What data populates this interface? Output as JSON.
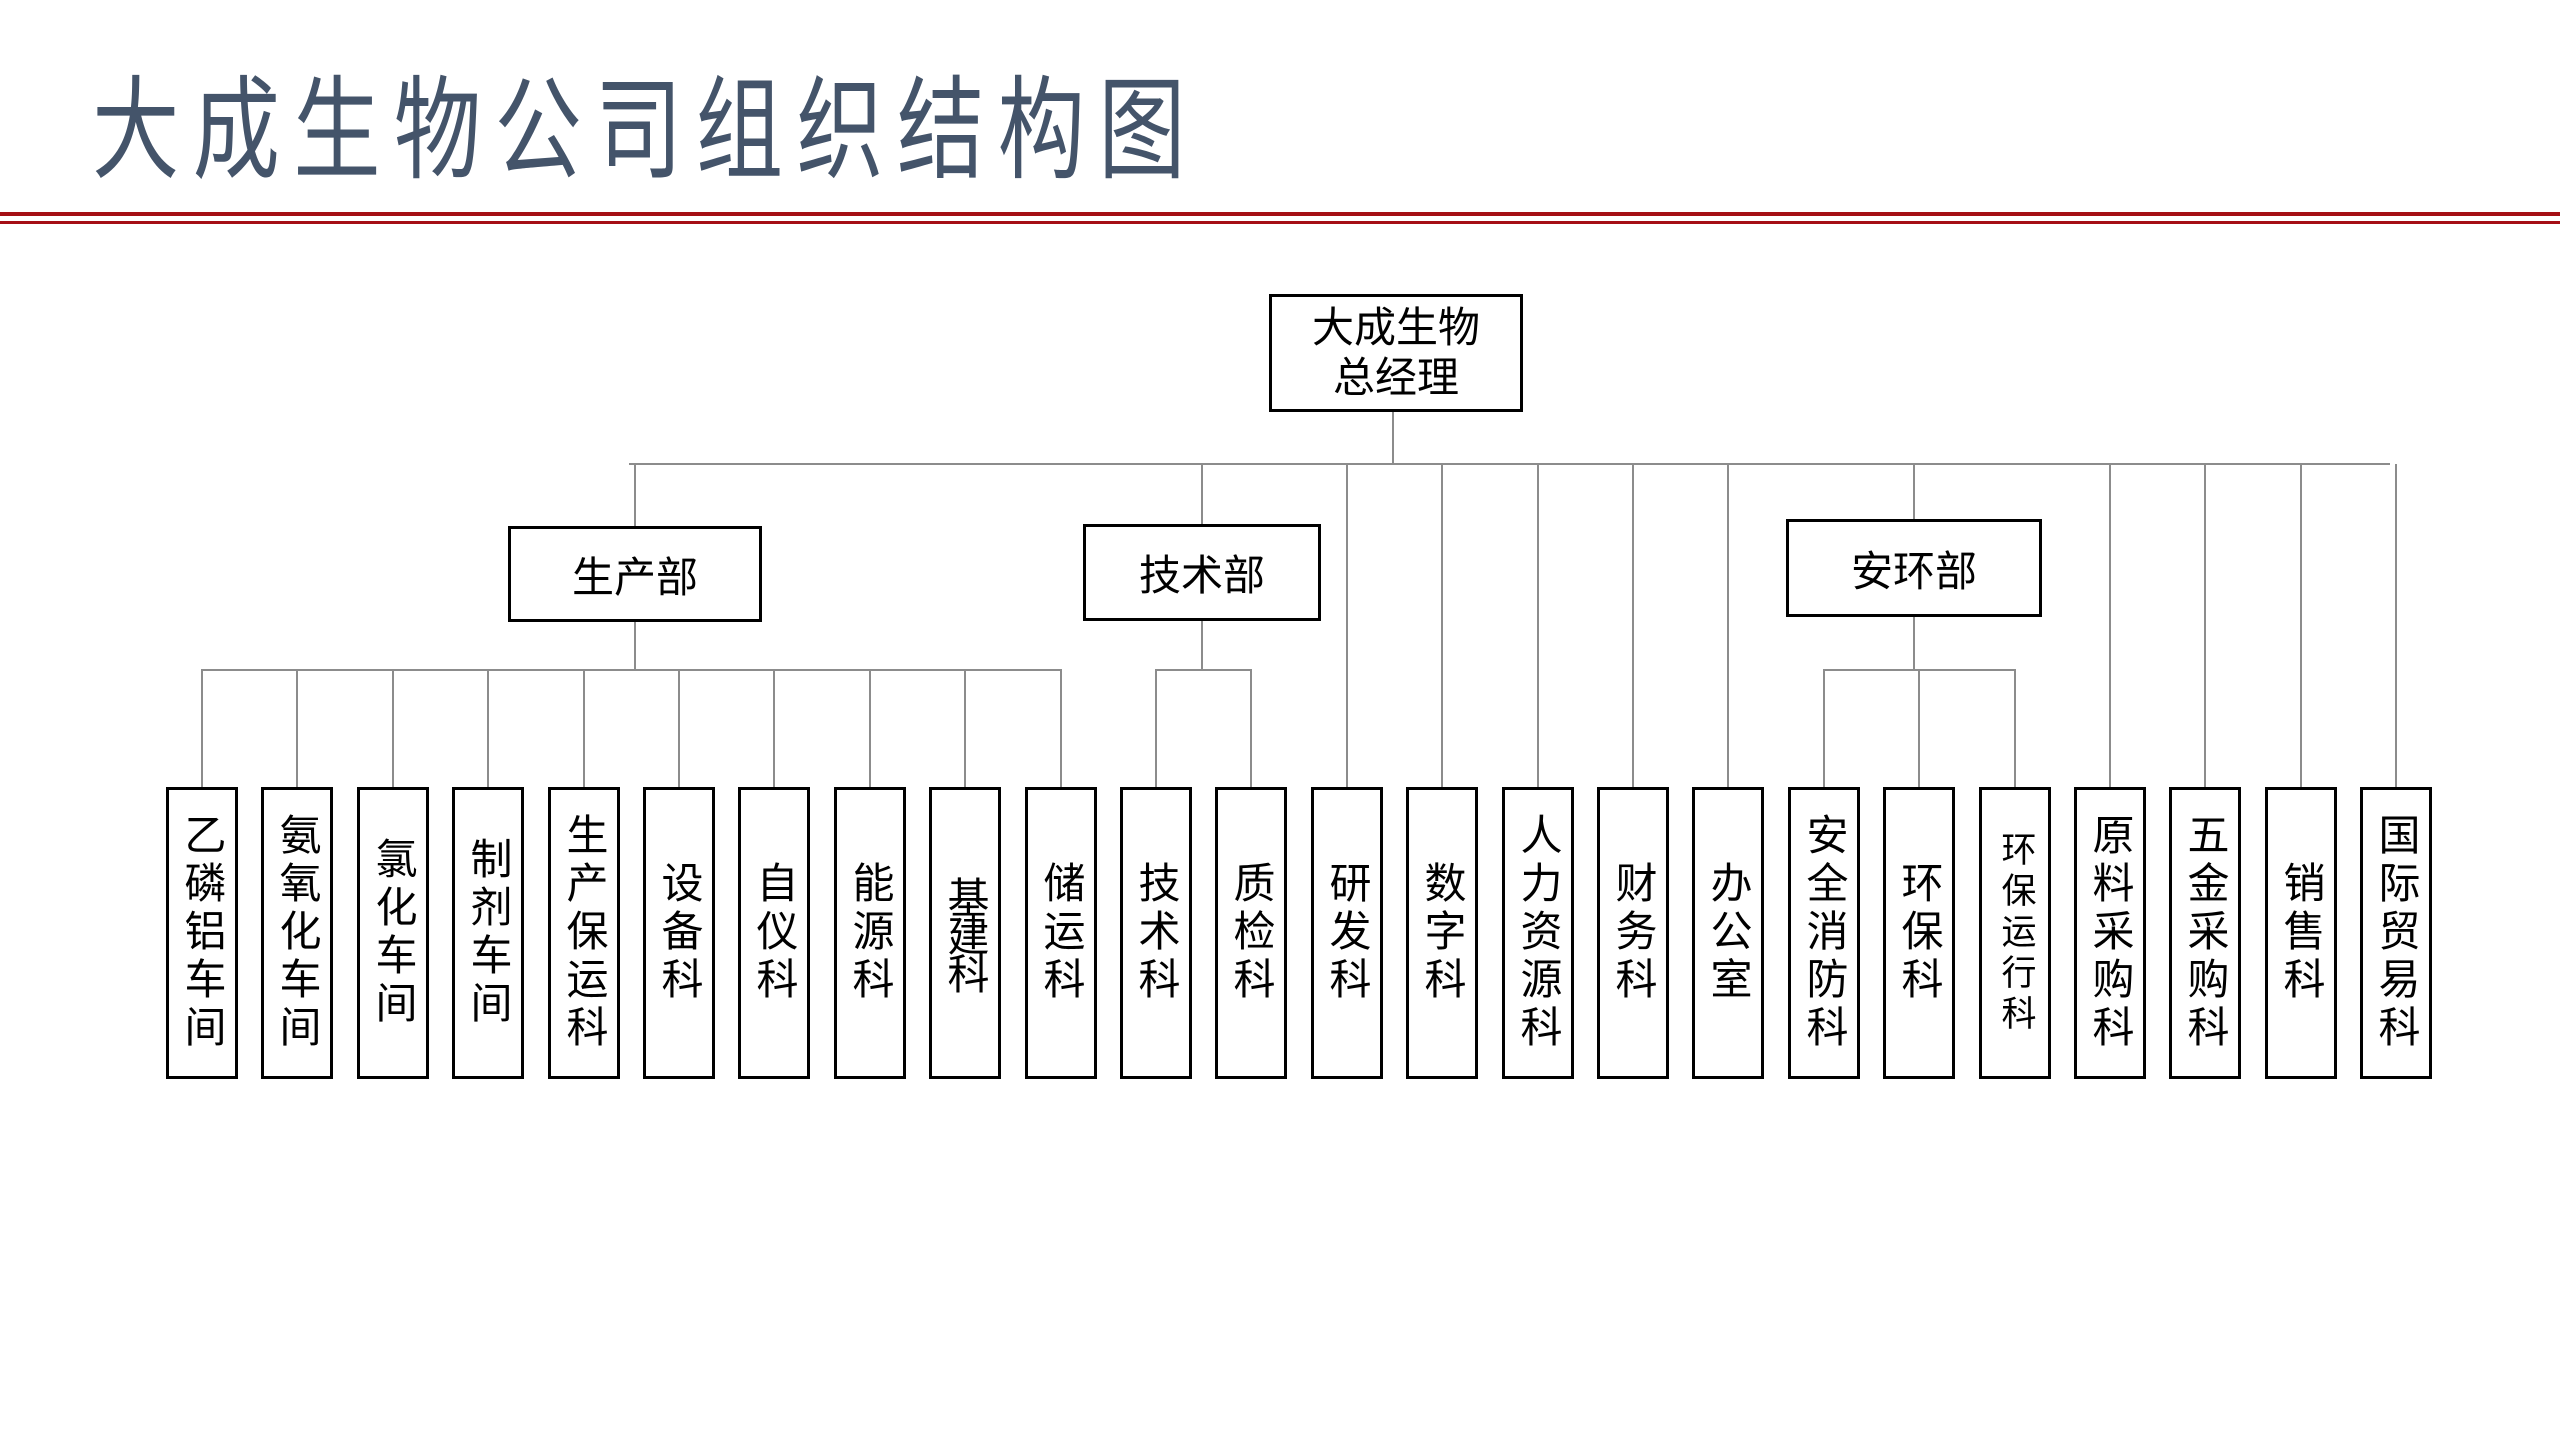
{
  "title": "大成生物公司组织结构图",
  "colors": {
    "title": "#44546a",
    "rule": "#a50f15",
    "line": "#8c8c8c",
    "border": "#000000"
  },
  "root": {
    "line1": "大成生物",
    "line2": "总经理"
  },
  "departments": [
    {
      "id": "prod",
      "label": "生产部"
    },
    {
      "id": "tech",
      "label": "技术部"
    },
    {
      "id": "env",
      "label": "安环部"
    }
  ],
  "units": [
    {
      "label": "乙磷铝车间",
      "parent": "prod"
    },
    {
      "label": "氨氧化车间",
      "parent": "prod"
    },
    {
      "label": "氯化车间",
      "parent": "prod"
    },
    {
      "label": "制剂车间",
      "parent": "prod"
    },
    {
      "label": "生产保运科",
      "parent": "prod"
    },
    {
      "label": "设备科",
      "parent": "prod"
    },
    {
      "label": "自仪科",
      "parent": "prod"
    },
    {
      "label": "能源科",
      "parent": "prod"
    },
    {
      "label": "基建科",
      "parent": "prod"
    },
    {
      "label": "储运科",
      "parent": "prod"
    },
    {
      "label": "技术科",
      "parent": "tech"
    },
    {
      "label": "质检科",
      "parent": "tech"
    },
    {
      "label": "研发科",
      "parent": "root"
    },
    {
      "label": "数字科",
      "parent": "root"
    },
    {
      "label": "人力资源科",
      "parent": "root"
    },
    {
      "label": "财务科",
      "parent": "root"
    },
    {
      "label": "办公室",
      "parent": "root"
    },
    {
      "label": "安全消防科",
      "parent": "env"
    },
    {
      "label": "环保科",
      "parent": "env"
    },
    {
      "label": "环保运行科",
      "parent": "env"
    },
    {
      "label": "原料采购科",
      "parent": "root"
    },
    {
      "label": "五金采购科",
      "parent": "root"
    },
    {
      "label": "销售科",
      "parent": "root"
    },
    {
      "label": "国际贸易科",
      "parent": "root"
    }
  ]
}
